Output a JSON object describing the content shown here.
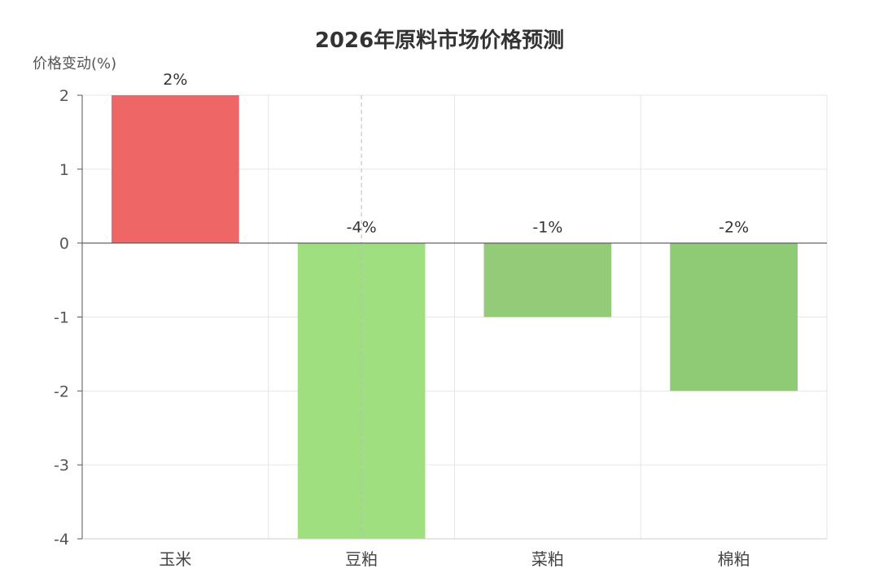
{
  "chart_data": {
    "type": "bar",
    "title": "2026年原料市场价格预测",
    "xlabel": "",
    "ylabel": "价格变动(%)",
    "categories": [
      "玉米",
      "豆粕",
      "菜粕",
      "棉粕"
    ],
    "values": [
      2,
      -4,
      -1,
      -2
    ],
    "data_labels": [
      "2%",
      "-4%",
      "-1%",
      "-2%"
    ],
    "yticks": [
      "2",
      "1",
      "0",
      "-1",
      "-2",
      "-3",
      "-4"
    ],
    "ylim": [
      -4,
      2
    ],
    "grid": true,
    "legend": "none",
    "colors": [
      "#ee6666",
      "#a0df7f",
      "#93cb78",
      "#8fca74"
    ],
    "grid_color": "#e6e6e6",
    "axis_color": "#555555"
  }
}
